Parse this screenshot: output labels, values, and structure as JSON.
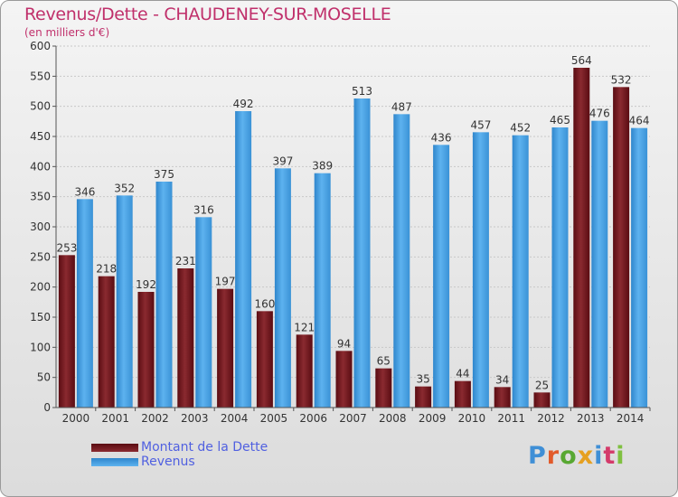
{
  "title": "Revenus/Dette - CHAUDENEY-SUR-MOSELLE",
  "subtitle": "(en milliers d'€)",
  "colors": {
    "dette": "#7a1a22",
    "revenus": "#4aa3e6",
    "title": "#c0306b",
    "legend_text": "#5060e0"
  },
  "logo": {
    "text": "Proxiti",
    "icon": "proxiti-logo"
  },
  "chart_data": {
    "type": "bar",
    "title": "Revenus/Dette - CHAUDENEY-SUR-MOSELLE",
    "subtitle": "(en milliers d'€)",
    "categories": [
      "2000",
      "2001",
      "2002",
      "2003",
      "2004",
      "2005",
      "2006",
      "2007",
      "2008",
      "2009",
      "2010",
      "2011",
      "2012",
      "2013",
      "2014"
    ],
    "series": [
      {
        "name": "Montant de la Dette",
        "values": [
          253,
          218,
          192,
          231,
          197,
          160,
          121,
          94,
          65,
          35,
          44,
          34,
          25,
          564,
          532
        ]
      },
      {
        "name": "Revenus",
        "values": [
          346,
          352,
          375,
          316,
          492,
          397,
          389,
          513,
          487,
          436,
          457,
          452,
          465,
          476,
          464
        ]
      }
    ],
    "ylim": [
      0,
      600
    ],
    "yticks": [
      0,
      50,
      100,
      150,
      200,
      250,
      300,
      350,
      400,
      450,
      500,
      550,
      600
    ],
    "grid": true,
    "legend_position": "bottom-left"
  }
}
